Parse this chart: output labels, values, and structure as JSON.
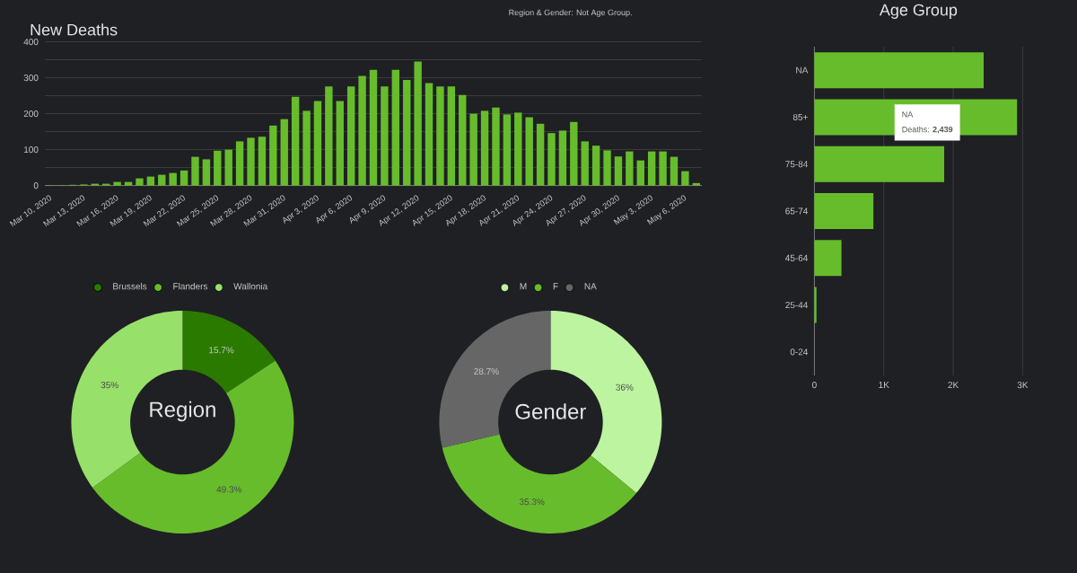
{
  "chart_data": [
    {
      "type": "bar",
      "title": "New Deaths",
      "categories": [
        "Mar 10, 2020",
        null,
        null,
        "Mar 13, 2020",
        null,
        null,
        "Mar 16, 2020",
        null,
        null,
        "Mar 19, 2020",
        null,
        null,
        "Mar 22, 2020",
        null,
        null,
        "Mar 25, 2020",
        null,
        null,
        "Mar 28, 2020",
        null,
        null,
        "Mar 31, 2020",
        null,
        null,
        "Apr 3, 2020",
        null,
        null,
        "Apr 6, 2020",
        null,
        null,
        "Apr 9, 2020",
        null,
        null,
        "Apr 12, 2020",
        null,
        null,
        "Apr 15, 2020",
        null,
        null,
        "Apr 18, 2020",
        null,
        null,
        "Apr 21, 2020",
        null,
        null,
        "Apr 24, 2020",
        null,
        null,
        "Apr 27, 2020",
        null,
        null,
        "Apr 30, 2020",
        null,
        null,
        "May 3, 2020",
        null,
        null,
        "May 6, 2020",
        null
      ],
      "values": [
        1,
        1,
        2,
        3,
        5,
        5,
        10,
        10,
        20,
        25,
        30,
        35,
        42,
        80,
        73,
        97,
        100,
        123,
        133,
        136,
        167,
        185,
        247,
        208,
        235,
        276,
        235,
        276,
        305,
        322,
        276,
        322,
        294,
        345,
        285,
        276,
        276,
        252,
        200,
        208,
        217,
        198,
        203,
        190,
        172,
        146,
        153,
        177,
        123,
        111,
        98,
        81,
        95,
        70,
        95,
        95,
        80,
        40,
        7
      ],
      "color": "#67bc2c",
      "ylim": [
        0,
        400
      ],
      "yticks": [
        0,
        {
          "value": 50,
          "label": null
        },
        100,
        {
          "value": 150,
          "label": null
        },
        200,
        {
          "value": 250,
          "label": null
        },
        300,
        {
          "value": 350,
          "label": null
        },
        400
      ],
      "grid": "y",
      "annotations": [
        "Region & Gender: Not Age Group."
      ]
    },
    {
      "type": "bar",
      "orientation": "horizontal",
      "title": "Age Group",
      "categories": [
        "NA",
        "85+",
        "75-84",
        "65-74",
        "45-64",
        "25-44",
        "0-24"
      ],
      "values": [
        2439,
        2920,
        1870,
        850,
        390,
        30,
        0
      ],
      "color": "#67bc2c",
      "xlim": [
        0,
        3000
      ],
      "xticks": [
        0,
        {
          "value": 1000,
          "label": "1K"
        },
        {
          "value": 2000,
          "label": "2K"
        },
        {
          "value": 3000,
          "label": "3K"
        }
      ],
      "grid": "x",
      "annotations": [
        "NA",
        "Deaths: **2,439**"
      ]
    },
    {
      "type": "donut",
      "title": "Region",
      "categories": [
        "Brussels",
        "Flanders",
        "Wallonia"
      ],
      "values": [
        15.7,
        49.3,
        35
      ],
      "colors": [
        "#2a7a00",
        "#67bc2c",
        "#97e06a"
      ],
      "value_labels": [
        "15.7%",
        "49.3%",
        "35%"
      ],
      "legend": "top"
    },
    {
      "type": "donut",
      "title": "Gender",
      "categories": [
        "M",
        "F",
        "NA"
      ],
      "values": [
        36,
        35.3,
        28.7
      ],
      "colors": [
        "#bdf4a0",
        "#67bc2c",
        "#666666"
      ],
      "value_labels": [
        "36%",
        "35.3%",
        "28.7%"
      ],
      "legend": "top"
    }
  ]
}
